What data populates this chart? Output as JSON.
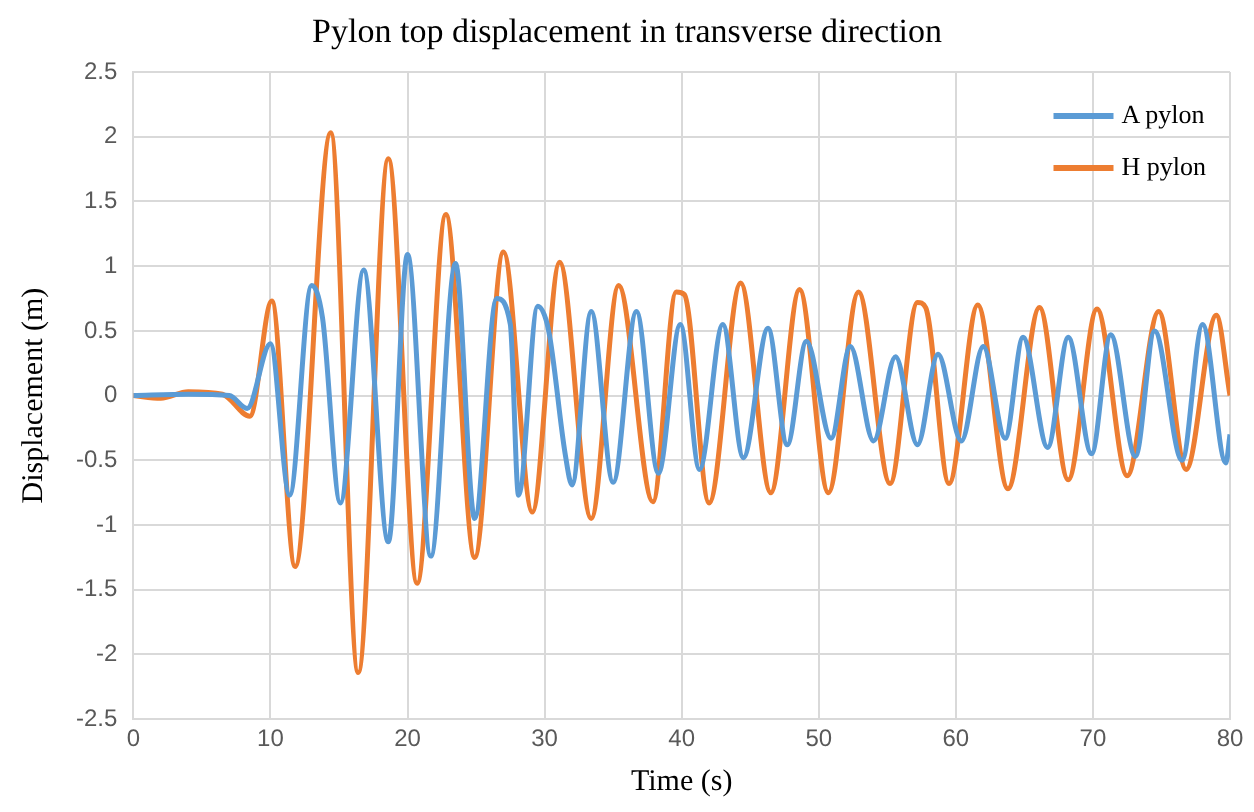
{
  "chart_data": {
    "type": "line",
    "title": "Pylon top displacement in transverse direction",
    "xlabel": "Time (s)",
    "ylabel": "Displacement (m)",
    "xlim": [
      0,
      80
    ],
    "xticks": [
      0,
      10,
      20,
      30,
      40,
      50,
      60,
      70,
      80
    ],
    "ylim": [
      -2.5,
      2.5
    ],
    "yticks": [
      -2.5,
      -2,
      -1.5,
      -1,
      -0.5,
      0,
      0.5,
      1,
      1.5,
      2,
      2.5
    ],
    "grid": true,
    "legend": "top right",
    "marker": "none",
    "line_style": "solid",
    "series": [
      {
        "name": "A pylon",
        "color": "#5b9bd5",
        "x": [
          0,
          4,
          7,
          8.3,
          10,
          11.4,
          13,
          13.8,
          15.1,
          16.8,
          18.6,
          20,
          21.7,
          23.5,
          24.9,
          26.5,
          27.5,
          28.1,
          29.5,
          30.3,
          31.5,
          32,
          33.4,
          35,
          36.7,
          38.3,
          39.9,
          41.3,
          43,
          44.5,
          46.3,
          47.7,
          49.1,
          50.9,
          52.3,
          54,
          55.6,
          57.2,
          58.7,
          60.4,
          62,
          63.6,
          64.9,
          66.7,
          68.2,
          69.9,
          71.3,
          73.1,
          74.5,
          76.5,
          78,
          79.7,
          80
        ],
        "values": [
          0,
          0.01,
          0,
          -0.1,
          0.4,
          -0.77,
          0.85,
          0.6,
          -0.83,
          0.97,
          -1.13,
          1.09,
          -1.24,
          1.02,
          -0.95,
          0.75,
          0.55,
          -0.77,
          0.69,
          0.5,
          -0.45,
          -0.69,
          0.65,
          -0.67,
          0.65,
          -0.6,
          0.55,
          -0.57,
          0.55,
          -0.48,
          0.52,
          -0.38,
          0.42,
          -0.33,
          0.38,
          -0.35,
          0.3,
          -0.38,
          0.32,
          -0.35,
          0.38,
          -0.33,
          0.45,
          -0.4,
          0.45,
          -0.45,
          0.47,
          -0.47,
          0.5,
          -0.5,
          0.55,
          -0.52,
          -0.3
        ]
      },
      {
        "name": "H pylon",
        "color": "#ed7d31",
        "x": [
          0,
          2,
          4,
          6.5,
          8.5,
          10.1,
          11.8,
          14.4,
          16.4,
          18.6,
          20.7,
          22.8,
          24.9,
          27,
          29.1,
          31.1,
          33.4,
          35.4,
          37.9,
          39.6,
          40.2,
          42,
          44.3,
          46.5,
          48.6,
          50.7,
          52.9,
          55.2,
          57.2,
          57.8,
          59.5,
          61.6,
          63.8,
          66.1,
          68.2,
          70.3,
          72.5,
          74.8,
          76.8,
          79,
          80
        ],
        "values": [
          0,
          -0.02,
          0.03,
          0.01,
          -0.16,
          0.73,
          -1.32,
          2.03,
          -2.14,
          1.83,
          -1.45,
          1.4,
          -1.25,
          1.11,
          -0.9,
          1.03,
          -0.95,
          0.85,
          -0.82,
          0.8,
          0.78,
          -0.83,
          0.87,
          -0.75,
          0.82,
          -0.75,
          0.8,
          -0.68,
          0.72,
          0.68,
          -0.68,
          0.7,
          -0.72,
          0.68,
          -0.65,
          0.67,
          -0.62,
          0.65,
          -0.57,
          0.62,
          0
        ]
      }
    ]
  }
}
